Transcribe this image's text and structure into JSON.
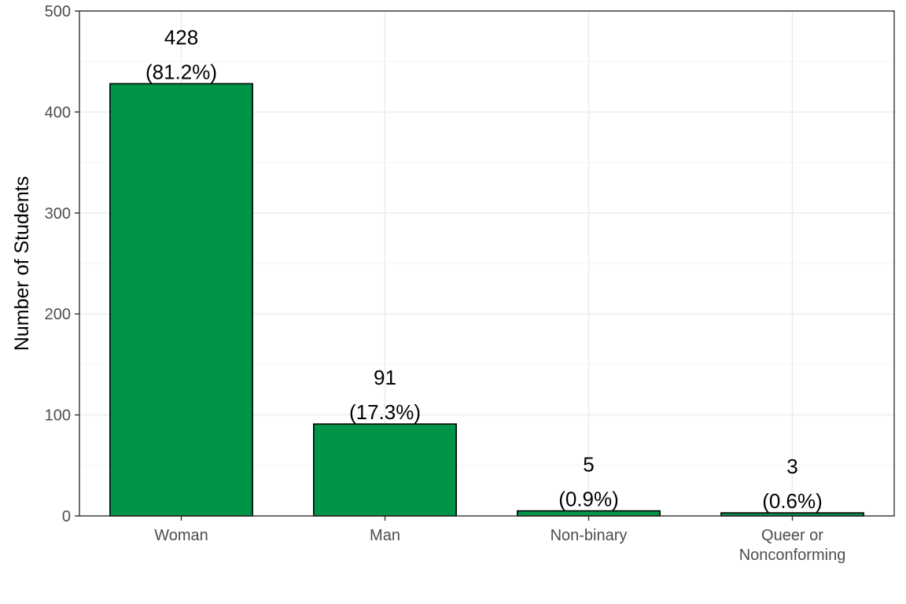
{
  "chart_data": {
    "type": "bar",
    "categories": [
      "Woman",
      "Man",
      "Non-binary",
      "Queer or\nNonconforming"
    ],
    "values": [
      428,
      91,
      5,
      3
    ],
    "percent_labels": [
      "(81.2%)",
      "(17.3%)",
      "(0.9%)",
      "(0.6%)"
    ],
    "title": "",
    "xlabel": "",
    "ylabel": "Number of Students",
    "ylim": [
      0,
      500
    ],
    "yticks": [
      0,
      100,
      200,
      300,
      400,
      500
    ],
    "grid": true,
    "legend": "none",
    "bar_color": "#009448",
    "bar_edge_color": "#000000"
  }
}
